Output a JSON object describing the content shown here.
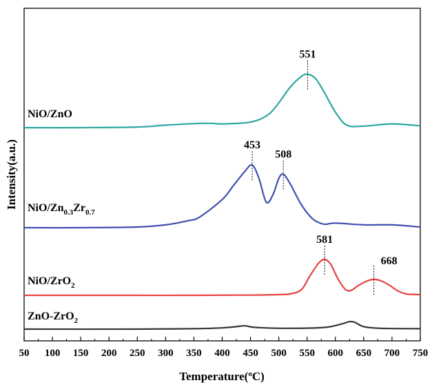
{
  "chart_data": {
    "type": "line",
    "xlabel": "Temperature(°C)",
    "ylabel": "Intensity(a.u.)",
    "xlim": [
      50,
      750
    ],
    "xticks": [
      50,
      100,
      150,
      200,
      250,
      300,
      350,
      400,
      450,
      500,
      550,
      600,
      650,
      700,
      750
    ],
    "yticks": "none",
    "grid": false,
    "legend": "inline labels at left of each curve",
    "series": [
      {
        "name": "NiO/ZnO",
        "color": "#2aa6a0",
        "label": {
          "main": "NiO/ZnO"
        },
        "x": [
          50,
          150,
          250,
          300,
          350,
          380,
          400,
          450,
          480,
          500,
          520,
          540,
          551,
          565,
          580,
          600,
          620,
          650,
          700,
          750
        ],
        "y": [
          0.0,
          0.0,
          0.02,
          0.08,
          0.13,
          0.14,
          0.12,
          0.18,
          0.4,
          0.8,
          1.3,
          1.65,
          1.72,
          1.58,
          1.15,
          0.5,
          0.08,
          0.05,
          0.12,
          0.06
        ],
        "peaks": [
          551
        ]
      },
      {
        "name": "NiO/Zn0.3Zr0.7",
        "color": "#3f4fae",
        "label": {
          "main": "NiO/Zn",
          "sub1": "0.3",
          "mid": "Zr",
          "sub2": "0.7"
        },
        "x": [
          50,
          150,
          250,
          300,
          340,
          360,
          400,
          420,
          440,
          453,
          465,
          478,
          490,
          500,
          508,
          520,
          540,
          560,
          580,
          600,
          650,
          700,
          750
        ],
        "y": [
          0.0,
          0.0,
          0.02,
          0.08,
          0.2,
          0.3,
          0.8,
          1.2,
          1.6,
          1.78,
          1.4,
          0.72,
          0.95,
          1.4,
          1.52,
          1.25,
          0.65,
          0.25,
          0.1,
          0.13,
          0.08,
          0.08,
          0.02
        ],
        "peaks": [
          453,
          508
        ]
      },
      {
        "name": "NiO/ZrO2",
        "color": "#e84040",
        "label": {
          "main": "NiO/ZrO",
          "sub1": "2"
        },
        "x": [
          50,
          150,
          250,
          350,
          450,
          500,
          520,
          540,
          555,
          570,
          581,
          592,
          605,
          618,
          628,
          640,
          655,
          668,
          680,
          695,
          710,
          725,
          750
        ],
        "y": [
          0.0,
          0.0,
          0.0,
          0.0,
          0.01,
          0.03,
          0.06,
          0.25,
          0.85,
          1.4,
          1.58,
          1.35,
          0.7,
          0.25,
          0.22,
          0.42,
          0.62,
          0.7,
          0.64,
          0.45,
          0.2,
          0.06,
          0.03
        ],
        "peaks": [
          581,
          668
        ]
      },
      {
        "name": "ZnO-ZrO2",
        "color": "#333333",
        "label": {
          "main": "ZnO-ZrO",
          "sub1": "2"
        },
        "x": [
          50,
          250,
          350,
          400,
          425,
          440,
          460,
          520,
          580,
          610,
          625,
          635,
          650,
          680,
          750
        ],
        "y": [
          0.0,
          0.0,
          0.01,
          0.03,
          0.06,
          0.08,
          0.04,
          0.02,
          0.04,
          0.12,
          0.18,
          0.16,
          0.06,
          0.02,
          0.01
        ],
        "peaks": []
      }
    ],
    "peak_labels": [
      "551",
      "453",
      "508",
      "581",
      "668"
    ]
  }
}
